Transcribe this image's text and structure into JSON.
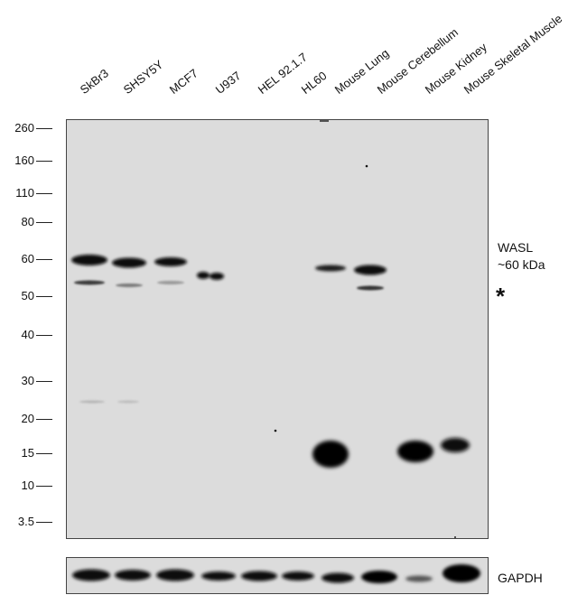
{
  "lanes": [
    "SkBr3",
    "SHSY5Y",
    "MCF7",
    "U937",
    "HEL 92.1.7",
    "HL60",
    "Mouse Lung",
    "Mouse Cerebellum",
    "Mouse Kidney",
    "Mouse Skeletal Muscle"
  ],
  "mw_markers": [
    "260",
    "160",
    "110",
    "80",
    "60",
    "50",
    "40",
    "30",
    "20",
    "15",
    "10",
    "3.5"
  ],
  "target_label": {
    "line1": "WASL",
    "line2": "~60 kDa"
  },
  "nonspecific_marker": "*",
  "loading_control": "GAPDH",
  "band_color": "#050505",
  "membrane_color": "#dcdcdc"
}
